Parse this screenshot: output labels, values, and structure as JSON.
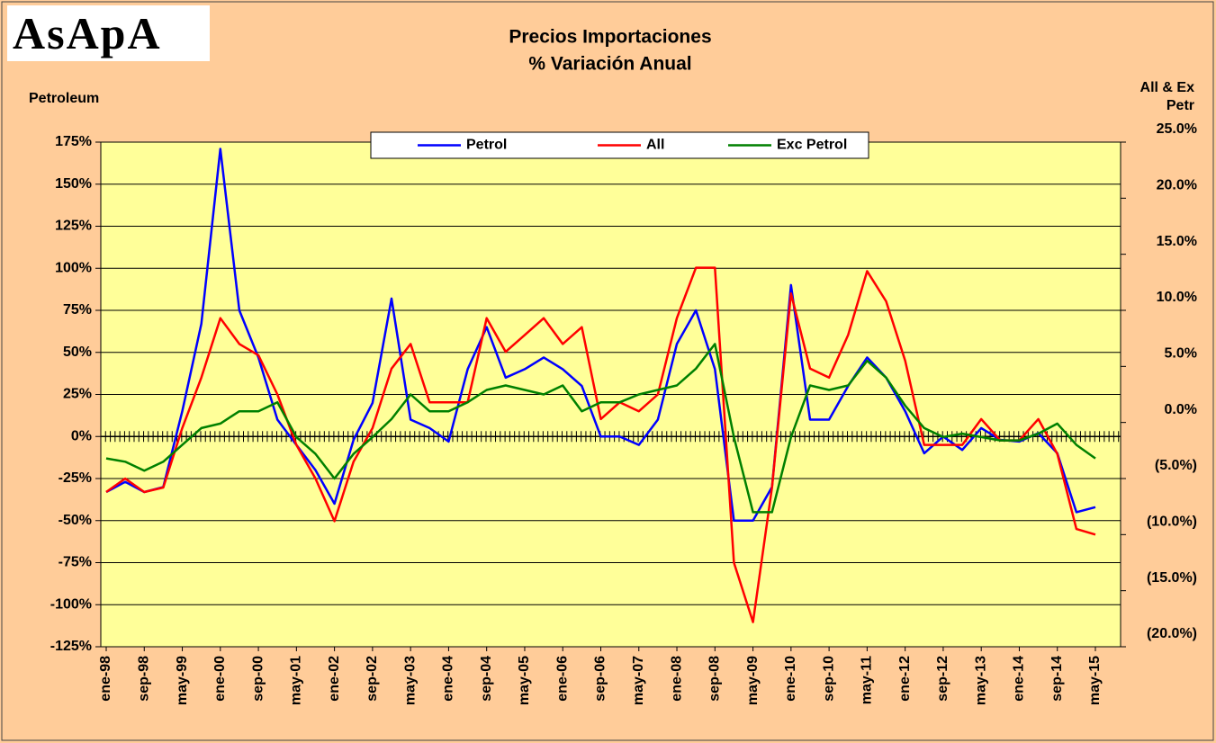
{
  "logo": "AsApA",
  "chart_data": {
    "type": "line",
    "title": "Precios Importaciones",
    "subtitle": "% Variación Anual",
    "ylabel": "Petroleum",
    "y2label": "All & Ex Petr",
    "categories": [
      "ene-98",
      null,
      "sep-98",
      null,
      "may-99",
      null,
      "ene-00",
      null,
      "sep-00",
      null,
      "may-01",
      null,
      "ene-02",
      null,
      "sep-02",
      null,
      "may-03",
      null,
      "ene-04",
      null,
      "sep-04",
      null,
      "may-05",
      null,
      "ene-06",
      null,
      "sep-06",
      null,
      "may-07",
      null,
      "ene-08",
      null,
      "sep-08",
      null,
      "may-09",
      null,
      "ene-10",
      null,
      "sep-10",
      null,
      "may-11",
      null,
      "ene-12",
      null,
      "sep-12",
      null,
      "may-13",
      null,
      "ene-14",
      null,
      "sep-14",
      null,
      "may-15"
    ],
    "series": [
      {
        "name": "Petrol",
        "color": "#0000FF",
        "axis": "y",
        "values": [
          -33,
          -27,
          -33,
          -30,
          15,
          67,
          171,
          75,
          47,
          10,
          -5,
          -20,
          -40,
          -2,
          20,
          82,
          10,
          5,
          -3,
          40,
          65,
          35,
          40,
          47,
          40,
          30,
          0,
          0,
          -5,
          10,
          55,
          75,
          40,
          -50,
          -50,
          -30,
          90,
          10,
          10,
          30,
          47,
          35,
          15,
          -10,
          0,
          -8,
          5,
          -2,
          -3,
          2,
          -10,
          -45,
          -42
        ]
      },
      {
        "name": "All",
        "color": "#FF0000",
        "axis": "y2",
        "values": [
          -6.2,
          -5.0,
          -6.2,
          -5.8,
          -0.5,
          4.0,
          9.3,
          7.0,
          6.0,
          2.5,
          -2.0,
          -5.0,
          -8.8,
          -3.5,
          -0.5,
          4.8,
          7.0,
          1.8,
          1.8,
          1.8,
          9.3,
          6.3,
          7.8,
          9.3,
          7.0,
          8.5,
          0.3,
          1.8,
          1.0,
          2.5,
          9.3,
          13.8,
          13.8,
          -12.5,
          -17.8,
          -5.8,
          11.5,
          4.8,
          4.0,
          7.8,
          13.5,
          10.8,
          5.5,
          -2.0,
          -2.0,
          -2.0,
          0.3,
          -1.6,
          -1.6,
          0.3,
          -2.8,
          -9.5,
          -10.0
        ]
      },
      {
        "name": "Exc Petrol",
        "color": "#008000",
        "axis": "y2",
        "values": [
          -3.2,
          -3.5,
          -4.3,
          -3.5,
          -2.0,
          -0.5,
          -0.1,
          1.0,
          1.0,
          1.8,
          -1.3,
          -2.8,
          -5.0,
          -2.8,
          -1.3,
          0.3,
          2.5,
          1.0,
          1.0,
          1.8,
          2.9,
          3.3,
          2.9,
          2.5,
          3.3,
          1.0,
          1.8,
          1.8,
          2.5,
          2.9,
          3.3,
          4.8,
          7.0,
          -1.3,
          -8.0,
          -8.0,
          -1.3,
          3.3,
          2.9,
          3.3,
          5.5,
          4.0,
          1.5,
          -0.5,
          -1.3,
          -1.0,
          -1.3,
          -1.6,
          -1.6,
          -1.0,
          -0.1,
          -2.0,
          -3.2
        ]
      }
    ],
    "ylim": [
      -125,
      175
    ],
    "yticks": [
      {
        "value": -125,
        "label": "-125%"
      },
      {
        "value": -100,
        "label": "-100%"
      },
      {
        "value": -75,
        "label": "-75%"
      },
      {
        "value": -50,
        "label": "-50%"
      },
      {
        "value": -25,
        "label": "-25%"
      },
      {
        "value": 0,
        "label": "0%"
      },
      {
        "value": 25,
        "label": "25%"
      },
      {
        "value": 50,
        "label": "50%"
      },
      {
        "value": 75,
        "label": "75%"
      },
      {
        "value": 100,
        "label": "100%"
      },
      {
        "value": 125,
        "label": "125%"
      },
      {
        "value": 150,
        "label": "150%"
      },
      {
        "value": 175,
        "label": "175%"
      }
    ],
    "y2lim": [
      -20,
      25
    ],
    "y2ticks": [
      {
        "value": -20,
        "label": "(20.0%)"
      },
      {
        "value": -15,
        "label": "(15.0%)"
      },
      {
        "value": -10,
        "label": "(10.0%)"
      },
      {
        "value": -5,
        "label": "(5.0%)"
      },
      {
        "value": 0,
        "label": "0.0%"
      },
      {
        "value": 5,
        "label": "5.0%"
      },
      {
        "value": 10,
        "label": "10.0%"
      },
      {
        "value": 15,
        "label": "15.0%"
      },
      {
        "value": 20,
        "label": "20.0%"
      },
      {
        "value": 25,
        "label": "25.0%"
      }
    ],
    "grid": true,
    "legend": "top"
  }
}
